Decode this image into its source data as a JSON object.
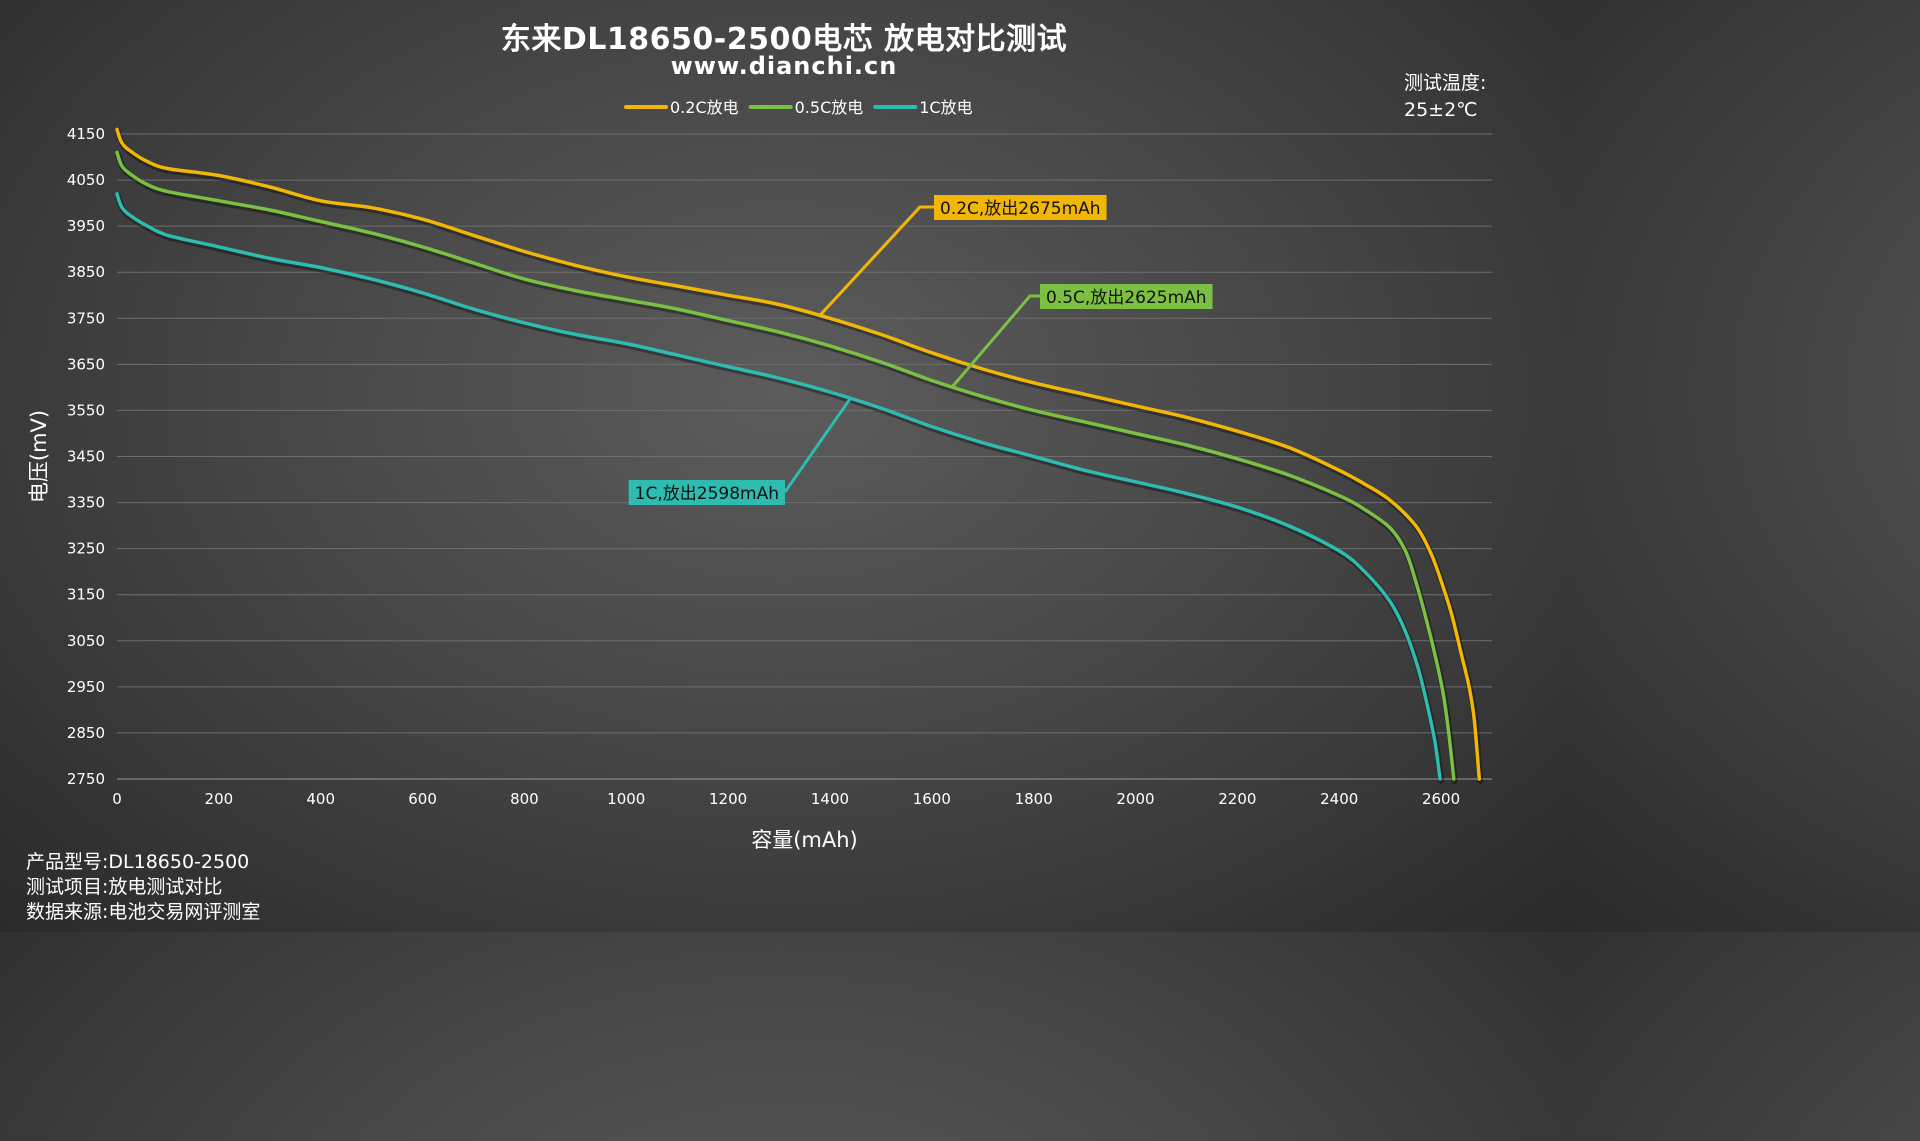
{
  "header": {
    "title": "东来DL18650-2500电芯 放电对比测试",
    "website": "www.dianchi.cn"
  },
  "temperature": {
    "label": "测试温度:",
    "value": "25±2℃"
  },
  "info": {
    "product": "产品型号:DL18650-2500",
    "item": "测试项目:放电测试对比",
    "source": "数据来源:电池交易网评测室"
  },
  "chart_data": {
    "type": "line",
    "title": "东来DL18650-2500电芯 放电对比测试",
    "xlabel": "容量(mAh)",
    "ylabel": "电压(mV)",
    "xlim": [
      0,
      2700
    ],
    "ylim": [
      2750,
      4150
    ],
    "x_ticks": [
      0,
      200,
      400,
      600,
      800,
      1000,
      1200,
      1400,
      1600,
      1800,
      2000,
      2200,
      2400,
      2600
    ],
    "y_ticks": [
      2750,
      2850,
      2950,
      3050,
      3150,
      3250,
      3350,
      3450,
      3550,
      3650,
      3750,
      3850,
      3950,
      4050,
      4150
    ],
    "grid": true,
    "legend_position": "top-center",
    "series": [
      {
        "name": "0.2C放电",
        "color": "#f2b705",
        "annotation": "0.2C,放出2675mAh",
        "points": [
          [
            0,
            4160
          ],
          [
            10,
            4130
          ],
          [
            30,
            4110
          ],
          [
            60,
            4090
          ],
          [
            100,
            4075
          ],
          [
            200,
            4060
          ],
          [
            300,
            4035
          ],
          [
            400,
            4005
          ],
          [
            500,
            3990
          ],
          [
            600,
            3965
          ],
          [
            700,
            3930
          ],
          [
            800,
            3895
          ],
          [
            900,
            3865
          ],
          [
            1000,
            3840
          ],
          [
            1100,
            3820
          ],
          [
            1200,
            3800
          ],
          [
            1300,
            3780
          ],
          [
            1400,
            3750
          ],
          [
            1500,
            3715
          ],
          [
            1600,
            3675
          ],
          [
            1700,
            3640
          ],
          [
            1800,
            3610
          ],
          [
            1900,
            3585
          ],
          [
            2000,
            3560
          ],
          [
            2100,
            3535
          ],
          [
            2200,
            3505
          ],
          [
            2300,
            3470
          ],
          [
            2400,
            3420
          ],
          [
            2450,
            3390
          ],
          [
            2500,
            3355
          ],
          [
            2550,
            3300
          ],
          [
            2580,
            3240
          ],
          [
            2600,
            3180
          ],
          [
            2620,
            3110
          ],
          [
            2640,
            3020
          ],
          [
            2655,
            2950
          ],
          [
            2665,
            2880
          ],
          [
            2675,
            2750
          ]
        ]
      },
      {
        "name": "0.5C放电",
        "color": "#7bc043",
        "annotation": "0.5C,放出2625mAh",
        "points": [
          [
            0,
            4110
          ],
          [
            10,
            4080
          ],
          [
            30,
            4060
          ],
          [
            60,
            4040
          ],
          [
            100,
            4025
          ],
          [
            200,
            4005
          ],
          [
            300,
            3985
          ],
          [
            400,
            3960
          ],
          [
            500,
            3935
          ],
          [
            600,
            3905
          ],
          [
            700,
            3870
          ],
          [
            800,
            3835
          ],
          [
            900,
            3810
          ],
          [
            1000,
            3790
          ],
          [
            1100,
            3770
          ],
          [
            1200,
            3745
          ],
          [
            1300,
            3720
          ],
          [
            1400,
            3690
          ],
          [
            1500,
            3655
          ],
          [
            1600,
            3615
          ],
          [
            1700,
            3580
          ],
          [
            1800,
            3550
          ],
          [
            1900,
            3525
          ],
          [
            2000,
            3500
          ],
          [
            2100,
            3475
          ],
          [
            2200,
            3445
          ],
          [
            2300,
            3410
          ],
          [
            2400,
            3365
          ],
          [
            2450,
            3335
          ],
          [
            2500,
            3295
          ],
          [
            2530,
            3245
          ],
          [
            2550,
            3180
          ],
          [
            2570,
            3100
          ],
          [
            2590,
            3010
          ],
          [
            2605,
            2930
          ],
          [
            2615,
            2850
          ],
          [
            2625,
            2750
          ]
        ]
      },
      {
        "name": "1C放电",
        "color": "#2ebbb0",
        "annotation": "1C,放出2598mAh",
        "points": [
          [
            0,
            4020
          ],
          [
            10,
            3990
          ],
          [
            30,
            3970
          ],
          [
            60,
            3950
          ],
          [
            100,
            3930
          ],
          [
            200,
            3905
          ],
          [
            300,
            3880
          ],
          [
            400,
            3860
          ],
          [
            500,
            3835
          ],
          [
            600,
            3805
          ],
          [
            700,
            3770
          ],
          [
            800,
            3740
          ],
          [
            900,
            3715
          ],
          [
            1000,
            3695
          ],
          [
            1100,
            3670
          ],
          [
            1200,
            3645
          ],
          [
            1300,
            3620
          ],
          [
            1400,
            3590
          ],
          [
            1500,
            3555
          ],
          [
            1600,
            3515
          ],
          [
            1700,
            3480
          ],
          [
            1800,
            3450
          ],
          [
            1900,
            3420
          ],
          [
            2000,
            3395
          ],
          [
            2100,
            3370
          ],
          [
            2200,
            3340
          ],
          [
            2300,
            3300
          ],
          [
            2400,
            3245
          ],
          [
            2450,
            3200
          ],
          [
            2500,
            3135
          ],
          [
            2530,
            3070
          ],
          [
            2555,
            2990
          ],
          [
            2575,
            2900
          ],
          [
            2588,
            2830
          ],
          [
            2598,
            2750
          ]
        ]
      }
    ]
  }
}
